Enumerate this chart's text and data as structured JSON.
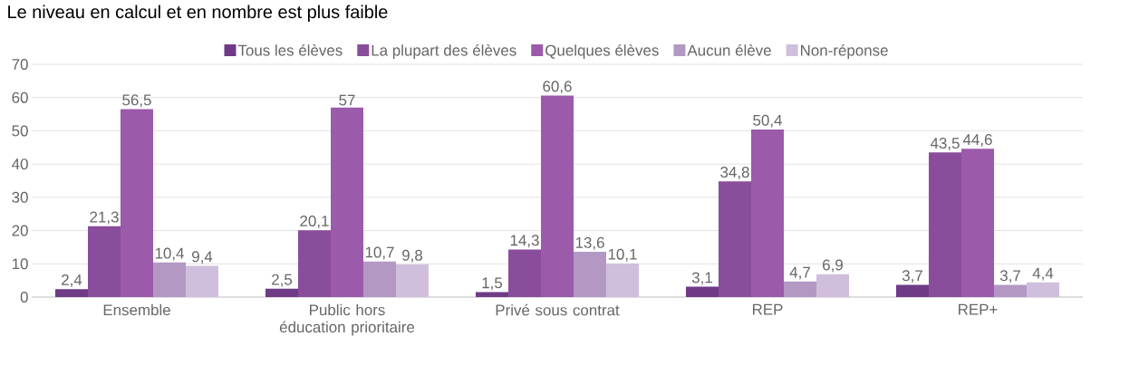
{
  "chart_data": {
    "type": "bar",
    "title": "Le niveau en calcul et en nombre est plus faible",
    "categories": [
      "Ensemble",
      "Public hors éducation prioritaire",
      "Privé sous contrat",
      "REP",
      "REP+"
    ],
    "series": [
      {
        "name": "Tous les élèves",
        "color": "#6f3a86",
        "values": [
          2.4,
          2.5,
          1.5,
          3.1,
          3.7
        ],
        "value_labels": [
          "2,4",
          "2,5",
          "1,5",
          "3,1",
          "3,7"
        ]
      },
      {
        "name": "La plupart des élèves",
        "color": "#8a4d9c",
        "values": [
          21.3,
          20.1,
          14.3,
          34.8,
          43.5
        ],
        "value_labels": [
          "21,3",
          "20,1",
          "14,3",
          "34,8",
          "43,5"
        ]
      },
      {
        "name": "Quelques élèves",
        "color": "#9b5aaa",
        "values": [
          56.5,
          57,
          60.6,
          50.4,
          44.6
        ],
        "value_labels": [
          "56,5",
          "57",
          "60,6",
          "50,4",
          "44,6"
        ]
      },
      {
        "name": "Aucun élève",
        "color": "#b398c4",
        "values": [
          10.4,
          10.7,
          13.6,
          4.7,
          3.7
        ],
        "value_labels": [
          "10,4",
          "10,7",
          "13,6",
          "4,7",
          "3,7"
        ]
      },
      {
        "name": "Non-réponse",
        "color": "#cfbfdc",
        "values": [
          9.4,
          9.8,
          10.1,
          6.9,
          4.4
        ],
        "value_labels": [
          "9,4",
          "9,8",
          "10,1",
          "6,9",
          "4,4"
        ]
      }
    ],
    "ylim": [
      0,
      70
    ],
    "yticks": [
      0,
      10,
      20,
      30,
      40,
      50,
      60,
      70
    ],
    "grid": "y",
    "legend": "top"
  }
}
